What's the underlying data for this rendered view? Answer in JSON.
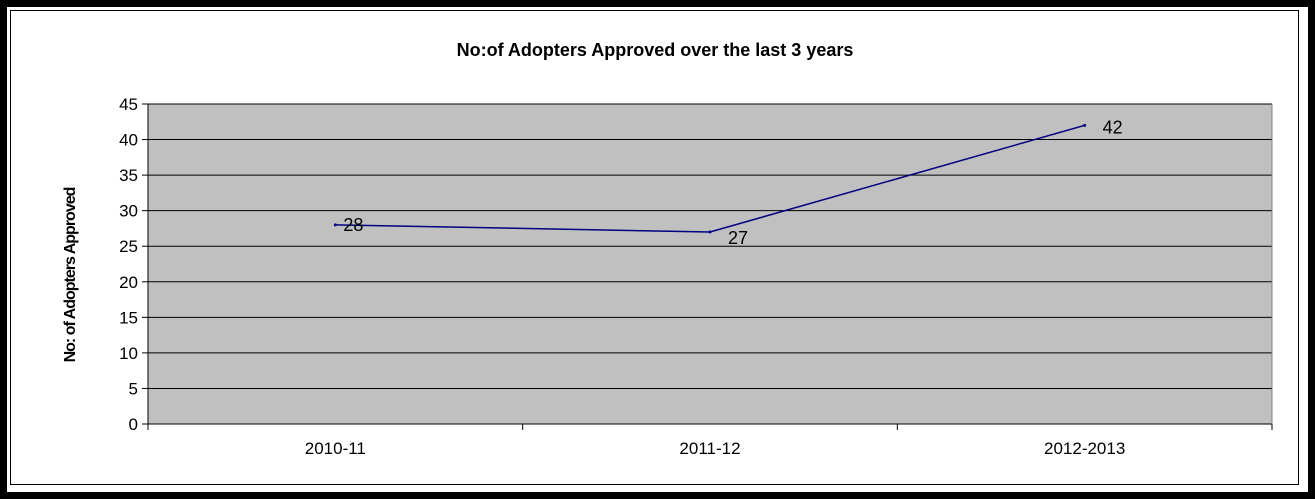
{
  "chart_data": {
    "type": "line",
    "title": "No:of Adopters Approved over the last 3 years",
    "xlabel": "",
    "ylabel": "No: of Adopters Approved",
    "categories": [
      "2010-11",
      "2011-12",
      "2012-2013"
    ],
    "series": [
      {
        "values": [
          28,
          27,
          42
        ]
      }
    ],
    "data_labels": [
      "28",
      "27",
      "42"
    ],
    "ylim": [
      0,
      45
    ],
    "yticks": [
      "0",
      "5",
      "10",
      "15",
      "20",
      "25",
      "30",
      "35",
      "40",
      "45"
    ],
    "grid": true,
    "legend": "none",
    "colors": {
      "plot_background": "#c0c0c0",
      "line": "#000080",
      "gridline": "#000000"
    }
  }
}
